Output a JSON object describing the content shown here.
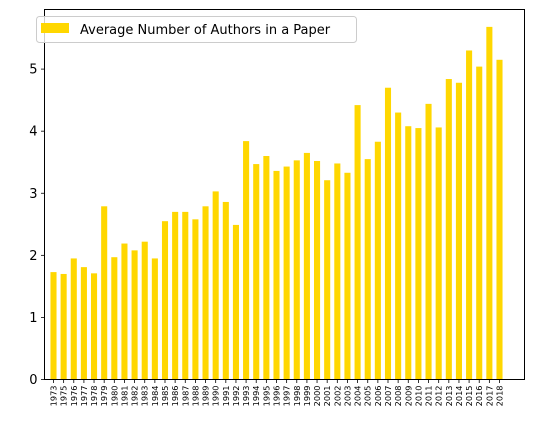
{
  "chart_data": {
    "type": "bar",
    "categories": [
      "1973",
      "1975",
      "1976",
      "1977",
      "1978",
      "1979",
      "1980",
      "1981",
      "1982",
      "1983",
      "1984",
      "1985",
      "1986",
      "1987",
      "1988",
      "1989",
      "1990",
      "1991",
      "1992",
      "1993",
      "1994",
      "1995",
      "1996",
      "1997",
      "1998",
      "1999",
      "2000",
      "2001",
      "2002",
      "2003",
      "2004",
      "2005",
      "2006",
      "2007",
      "2008",
      "2009",
      "2010",
      "2011",
      "2012",
      "2013",
      "2014",
      "2015",
      "2016",
      "2017",
      "2018"
    ],
    "series": [
      {
        "name": "Average Number of Authors in a Paper",
        "color": "#ffd700",
        "values": [
          1.73,
          1.7,
          1.95,
          1.81,
          1.71,
          2.79,
          1.97,
          2.19,
          2.08,
          2.22,
          1.95,
          2.55,
          2.7,
          2.7,
          2.58,
          2.79,
          3.03,
          2.86,
          2.49,
          3.84,
          3.47,
          3.6,
          3.36,
          3.43,
          3.53,
          3.65,
          3.52,
          3.21,
          3.48,
          3.33,
          4.42,
          3.55,
          3.83,
          4.7,
          4.3,
          4.08,
          4.05,
          4.44,
          4.06,
          4.84,
          4.78,
          5.3,
          5.04,
          5.68,
          5.15
        ]
      }
    ],
    "y_ticks": [
      "0",
      "1",
      "2",
      "3",
      "4",
      "5"
    ],
    "ylim": [
      0,
      5.96
    ],
    "title": "",
    "xlabel": "",
    "ylabel": "",
    "legend": "top-left",
    "grid": false
  }
}
